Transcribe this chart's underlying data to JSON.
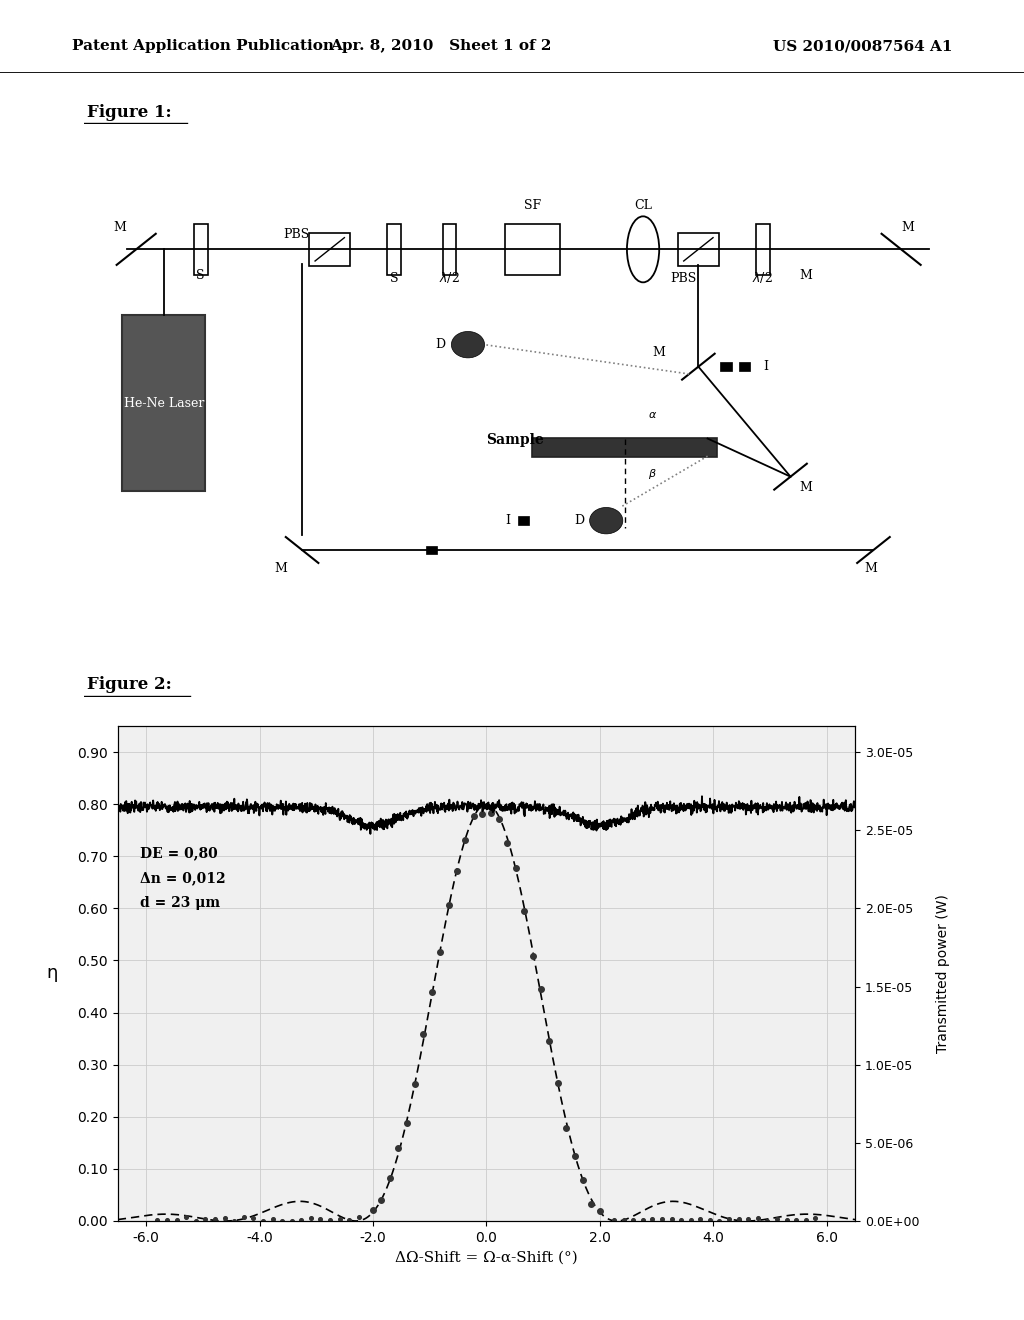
{
  "header_left": "Patent Application Publication",
  "header_mid": "Apr. 8, 2010   Sheet 1 of 2",
  "header_right": "US 2010/0087564 A1",
  "fig1_label": "Figure 1:",
  "fig2_label": "Figure 2:",
  "annotation_de": "DE = 0,80",
  "annotation_dn": "Δn = 0,012",
  "annotation_d": "d = 23 μm",
  "xlabel": "ΔΩ-Shift = Ω-α-Shift (°)",
  "ylabel_left": "η",
  "ylabel_right": "Transmitted power (W)",
  "xlim": [
    -6.5,
    6.5
  ],
  "ylim_left": [
    0.0,
    0.95
  ],
  "ylim_right": [
    0.0,
    3.16667e-05
  ],
  "xticks": [
    -6.0,
    -4.0,
    -2.0,
    0.0,
    2.0,
    4.0,
    6.0
  ],
  "xtick_labels": [
    "-6.0",
    "-4.0",
    "-2.0",
    "0.0",
    "2.0",
    "4.0",
    "6.0"
  ],
  "yticks_left": [
    0.0,
    0.1,
    0.2,
    0.3,
    0.4,
    0.5,
    0.6,
    0.7,
    0.8,
    0.9
  ],
  "yticks_right_labels": [
    "0.0E+00",
    "5.0E-06",
    "1.0E-05",
    "1.5E-05",
    "2.0E-05",
    "2.5E-05",
    "3.0E-05"
  ],
  "yticks_right_vals": [
    0.0,
    5e-06,
    1e-05,
    1.5e-05,
    2e-05,
    2.5e-05,
    3e-05
  ],
  "grid_color": "#cccccc",
  "dot_color": "#333333",
  "line_color": "#000000",
  "bg_color": "#f0f0f0"
}
